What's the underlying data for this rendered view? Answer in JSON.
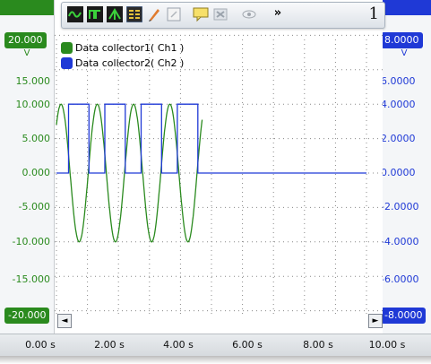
{
  "toolbar": {
    "buttons": [
      {
        "icon": "channel-a-trace-icon"
      },
      {
        "icon": "trigger-rising-icon"
      },
      {
        "icon": "trigger-falling-icon"
      },
      {
        "icon": "measurements-icon"
      },
      {
        "icon": "pen-icon"
      },
      {
        "icon": "zoom-fit-icon"
      },
      {
        "icon": "comment-icon"
      },
      {
        "icon": "disconnect-icon"
      },
      {
        "icon": "view-icon"
      },
      {
        "icon": "more-chevron-icon"
      }
    ],
    "overflow_label": "»",
    "page_number": "1"
  },
  "left_axis": {
    "color": "#2a8a1e",
    "top_badge": "20.000",
    "bottom_badge": "-20.000",
    "unit": "V",
    "ticks": [
      "15.000",
      "10.000",
      "5.000",
      "0.000",
      "-5.000",
      "-10.000",
      "-15.000"
    ]
  },
  "right_axis": {
    "color": "#1f39d6",
    "top_badge": "8.0000",
    "bottom_badge": "-8.0000",
    "unit": "V",
    "ticks": [
      "6.0000",
      "4.0000",
      "2.0000",
      "0.0000",
      "-2.0000",
      "-4.0000",
      "-6.0000"
    ]
  },
  "legend": [
    {
      "label": "Data collector1( Ch1 )",
      "color": "#2a8a1e"
    },
    {
      "label": "Data collector2( Ch2 )",
      "color": "#1f39d6"
    }
  ],
  "time_axis": {
    "labels": [
      "0.00 s",
      "2.00 s",
      "4.00 s",
      "6.00 s",
      "8.00 s",
      "10.00 s"
    ]
  },
  "scroll": {
    "left_arrow": "◄",
    "right_arrow": "►"
  },
  "chart_data": {
    "type": "line",
    "xlim": [
      0,
      10
    ],
    "series": [
      {
        "name": "Data collector1( Ch1 )",
        "axis": "left",
        "ylim": [
          -20,
          20
        ],
        "shape": "sine",
        "amplitude": 10,
        "period_s": 1.17,
        "start_s": 0,
        "end_s": 4.7
      },
      {
        "name": "Data collector2( Ch2 )",
        "axis": "right",
        "ylim": [
          -8,
          8
        ],
        "shape": "square",
        "high": 4,
        "low": 0,
        "segments": [
          [
            0,
            0.39,
            0
          ],
          [
            0.39,
            1.05,
            4
          ],
          [
            1.05,
            1.56,
            0
          ],
          [
            1.56,
            2.22,
            4
          ],
          [
            2.22,
            2.73,
            0
          ],
          [
            2.73,
            3.39,
            4
          ],
          [
            3.39,
            3.9,
            0
          ],
          [
            3.9,
            4.56,
            4
          ],
          [
            4.56,
            10,
            0
          ]
        ]
      }
    ],
    "grid": true
  }
}
